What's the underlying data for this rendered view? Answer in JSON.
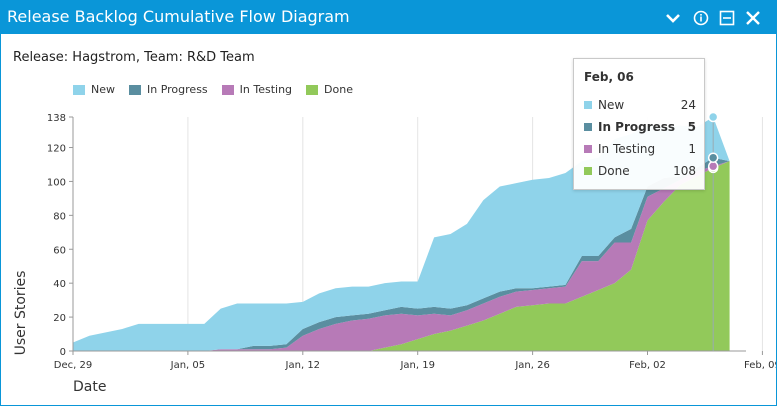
{
  "widget": {
    "title": "Release Backlog Cumulative Flow Diagram",
    "subtitle": "Release: Hagstrom, Team: R&D Team",
    "icons": [
      "chevron-down-icon",
      "info-icon",
      "minimize-icon",
      "close-icon"
    ],
    "accent_color": "#0a96d8"
  },
  "tooltip": {
    "date": "Feb, 06",
    "rows": [
      {
        "label": "New",
        "value": "24",
        "color": "#8fd3ea"
      },
      {
        "label": "In Progress",
        "value": "5",
        "color": "#5a8ea0"
      },
      {
        "label": "In Testing",
        "value": "1",
        "color": "#b77ab7"
      },
      {
        "label": "Done",
        "value": "108",
        "color": "#92c95a"
      }
    ]
  },
  "chart_data": {
    "type": "area",
    "stacked": true,
    "title": "",
    "xlabel": "Date",
    "ylabel": "User Stories",
    "x_ticks": [
      "Dec, 29",
      "Jan, 05",
      "Jan, 12",
      "Jan, 19",
      "Jan, 26",
      "Feb, 02",
      "Feb, 09"
    ],
    "y_ticks": [
      0,
      20,
      40,
      60,
      80,
      100,
      120,
      138
    ],
    "ylim": [
      0,
      138
    ],
    "grid": "vertical",
    "legend_position": "top-left",
    "x": [
      "Dec 29",
      "Dec 30",
      "Dec 31",
      "Jan 01",
      "Jan 02",
      "Jan 03",
      "Jan 04",
      "Jan 05",
      "Jan 06",
      "Jan 07",
      "Jan 08",
      "Jan 09",
      "Jan 10",
      "Jan 11",
      "Jan 12",
      "Jan 13",
      "Jan 14",
      "Jan 15",
      "Jan 16",
      "Jan 17",
      "Jan 18",
      "Jan 19",
      "Jan 20",
      "Jan 21",
      "Jan 22",
      "Jan 23",
      "Jan 24",
      "Jan 25",
      "Jan 26",
      "Jan 27",
      "Jan 28",
      "Jan 29",
      "Jan 30",
      "Jan 31",
      "Feb 01",
      "Feb 02",
      "Feb 03",
      "Feb 04",
      "Feb 05",
      "Feb 06",
      "Feb 07"
    ],
    "series": [
      {
        "name": "Done",
        "color": "#92c95a",
        "values": [
          0,
          0,
          0,
          0,
          0,
          0,
          0,
          0,
          0,
          0,
          0,
          0,
          0,
          0,
          0,
          0,
          0,
          0,
          0,
          2,
          4,
          7,
          10,
          12,
          15,
          18,
          22,
          26,
          27,
          28,
          28,
          32,
          36,
          40,
          48,
          77,
          88,
          98,
          103,
          108,
          112
        ]
      },
      {
        "name": "In Testing",
        "color": "#b77ab7",
        "values": [
          0,
          0,
          0,
          0,
          0,
          0,
          0,
          0,
          0,
          1,
          1,
          1,
          1,
          2,
          9,
          13,
          16,
          18,
          19,
          19,
          18,
          14,
          12,
          9,
          9,
          10,
          10,
          9,
          9,
          9,
          10,
          21,
          17,
          24,
          16,
          14,
          8,
          3,
          3,
          1,
          0
        ]
      },
      {
        "name": "In Progress",
        "color": "#5a8ea0",
        "values": [
          0,
          0,
          0,
          0,
          0,
          0,
          0,
          0,
          0,
          0,
          0,
          2,
          2,
          2,
          4,
          4,
          4,
          3,
          3,
          3,
          4,
          4,
          4,
          4,
          3,
          3,
          3,
          2,
          1,
          1,
          1,
          3,
          3,
          3,
          8,
          6,
          6,
          2,
          2,
          5,
          0
        ]
      },
      {
        "name": "New",
        "color": "#8fd3ea",
        "values": [
          5,
          9,
          11,
          13,
          16,
          16,
          16,
          16,
          16,
          24,
          27,
          25,
          25,
          24,
          16,
          17,
          17,
          17,
          16,
          16,
          15,
          16,
          41,
          44,
          48,
          58,
          62,
          62,
          64,
          64,
          66,
          56,
          58,
          58,
          56,
          36,
          30,
          30,
          24,
          24,
          0
        ]
      }
    ]
  }
}
